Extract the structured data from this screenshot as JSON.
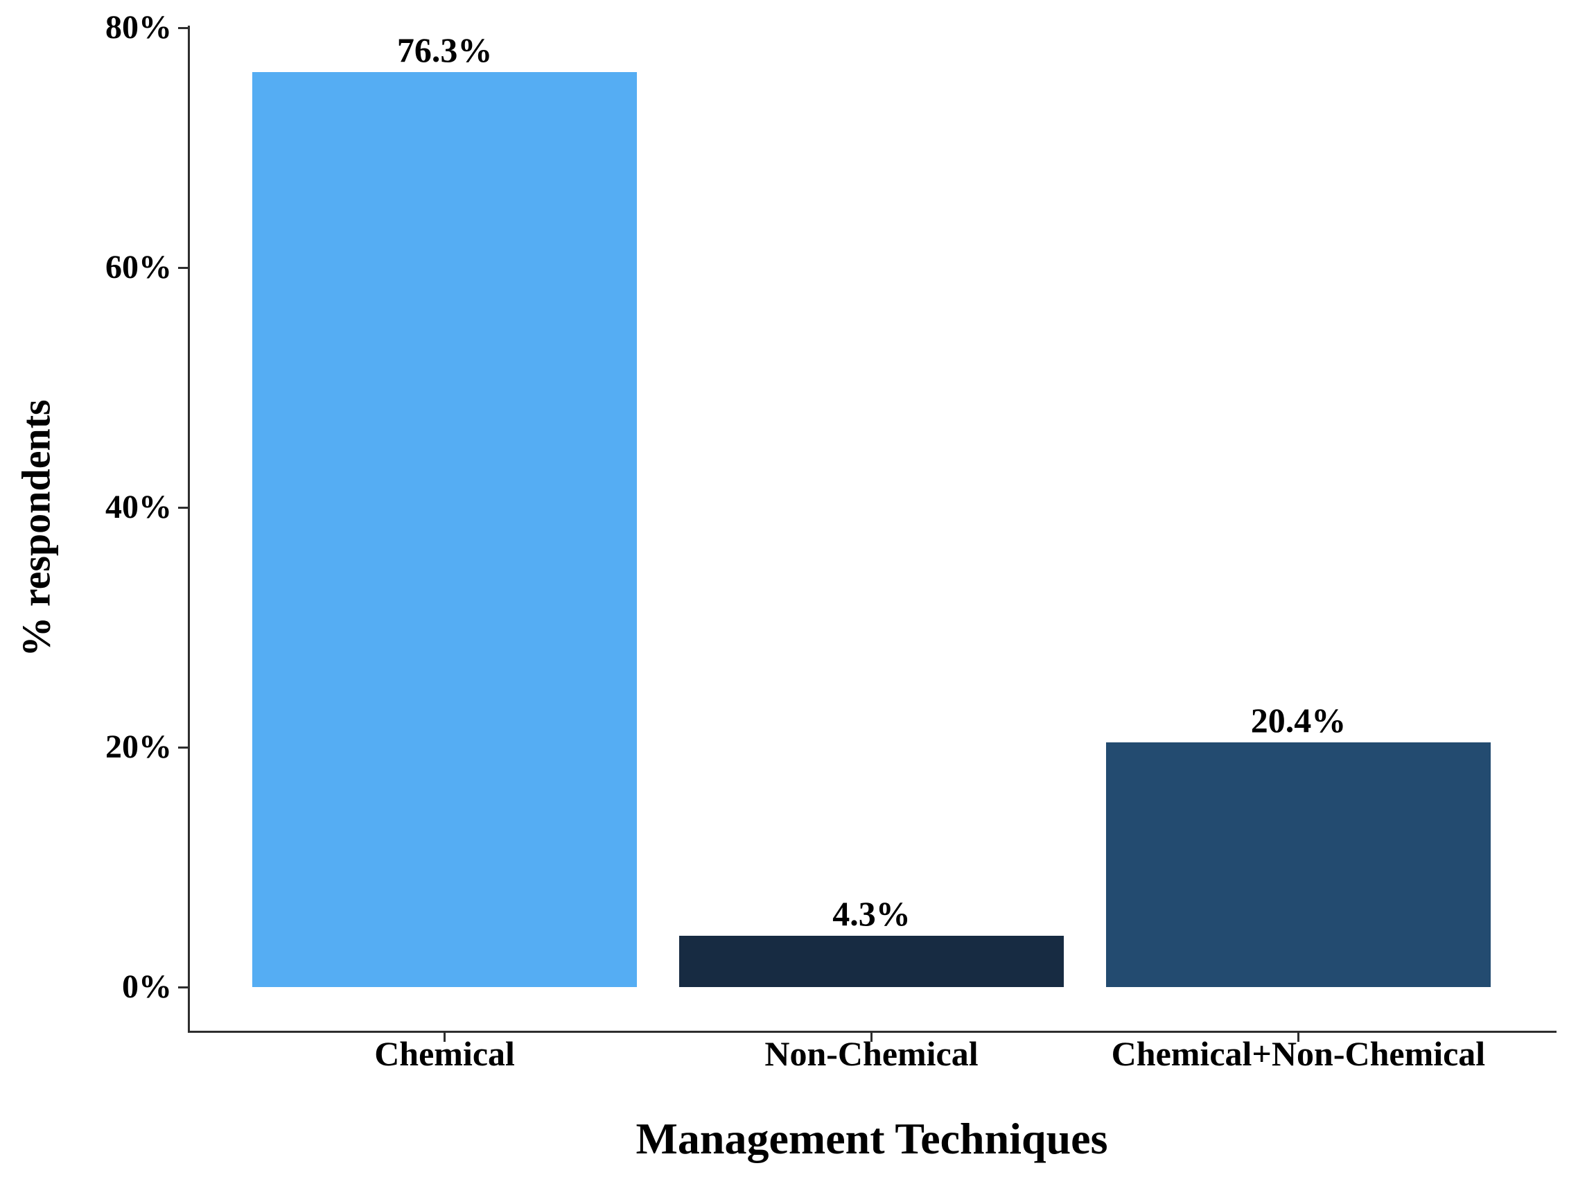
{
  "chart_data": {
    "type": "bar",
    "title": "",
    "xlabel": "Management Techniques",
    "ylabel": "% respondents",
    "categories": [
      "Chemical",
      "Non-Chemical",
      "Chemical+Non-Chemical"
    ],
    "values": [
      76.3,
      4.3,
      20.4
    ],
    "value_labels": [
      "76.3%",
      "4.3%",
      "20.4%"
    ],
    "bar_colors": [
      "#55ADF3",
      "#172B42",
      "#234B70"
    ],
    "ylim": [
      0,
      80
    ],
    "yticks": [
      0,
      20,
      40,
      60,
      80
    ],
    "ytick_labels": [
      "0%",
      "20%",
      "40%",
      "60%",
      "80%"
    ],
    "grid": false,
    "legend": null,
    "bar_relative_width": 0.9,
    "background": "#ffffff",
    "axis_color": "#2e2e2e",
    "text_color": "#000000"
  }
}
